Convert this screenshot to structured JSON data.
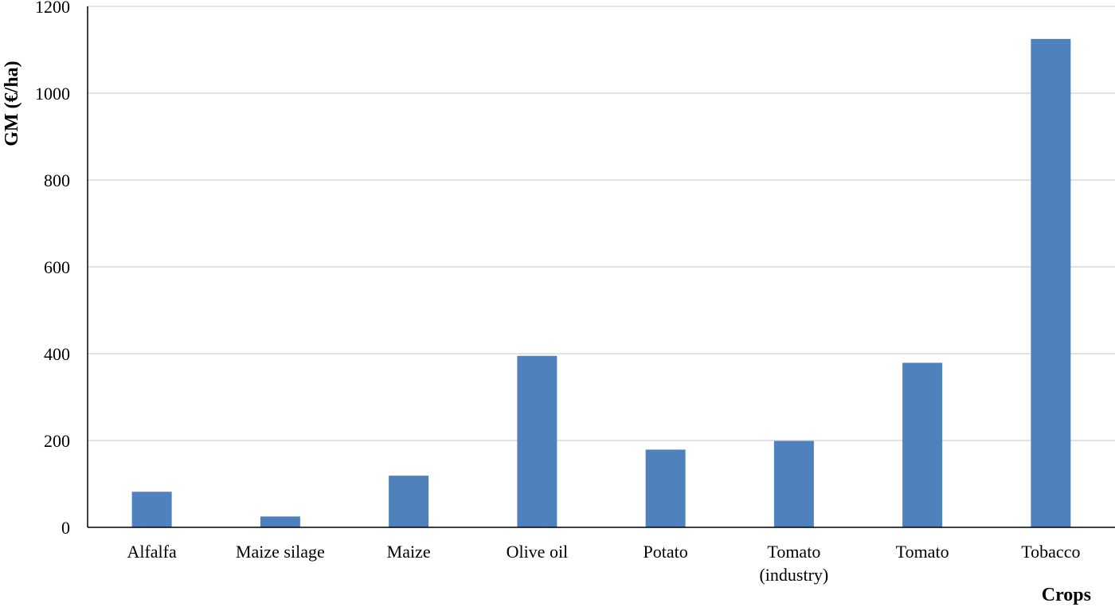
{
  "chart_data": {
    "type": "bar",
    "categories": [
      "Alfalfa",
      "Maize silage",
      "Maize",
      "Olive oil",
      "Potato",
      "Tomato (industry)",
      "Tomato",
      "Tobacco"
    ],
    "category_labels": [
      [
        "Alfalfa"
      ],
      [
        "Maize silage"
      ],
      [
        "Maize"
      ],
      [
        "Olive oil"
      ],
      [
        "Potato"
      ],
      [
        "Tomato",
        "(industry)"
      ],
      [
        "Tomato"
      ],
      [
        "Tobacco"
      ]
    ],
    "values": [
      82,
      25,
      119,
      395,
      179,
      199,
      379,
      1125
    ],
    "title": "",
    "xlabel": "Crops",
    "ylabel": "GM (€/ha)",
    "ylim": [
      0,
      1200
    ],
    "yticks": [
      0,
      200,
      400,
      600,
      800,
      1000,
      1200
    ],
    "ytick_labels": [
      "0",
      "200",
      "400",
      "600",
      "800",
      "1000",
      "1200"
    ],
    "grid": true,
    "bar_color": "#4f81bd",
    "grid_color": "#d9d9d9",
    "axis_color": "#000000"
  }
}
